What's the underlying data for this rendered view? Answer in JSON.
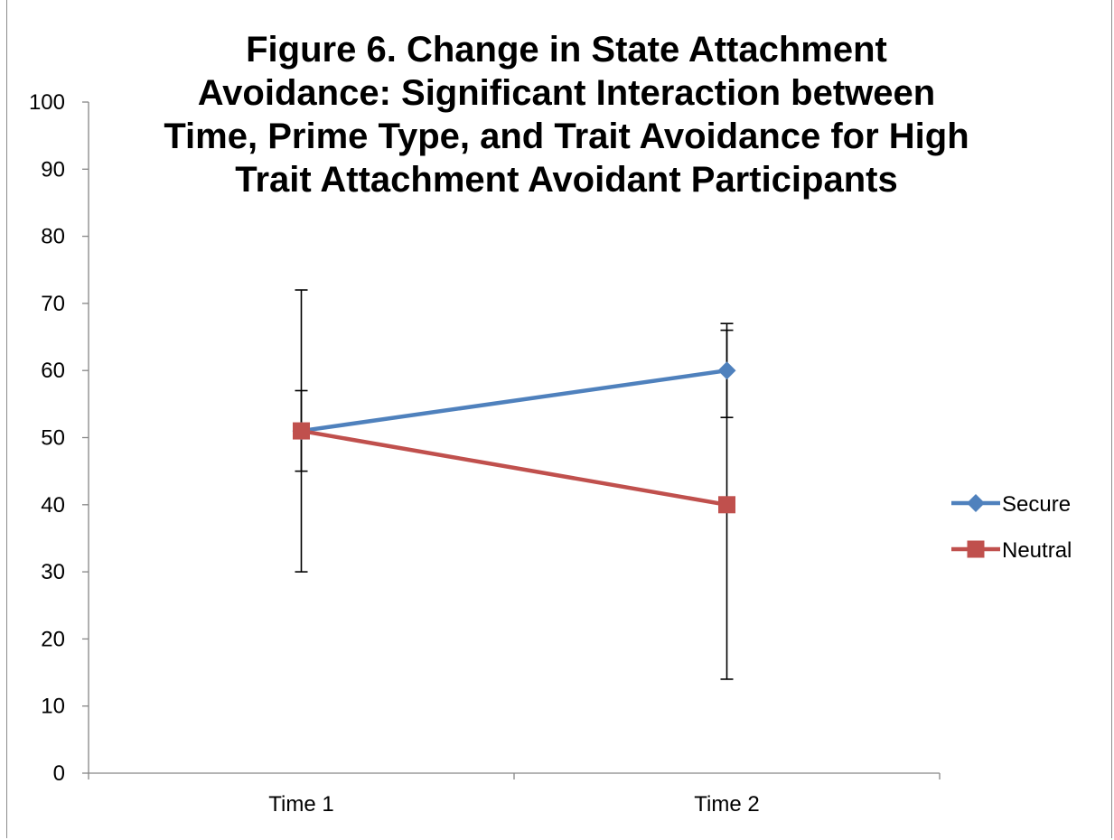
{
  "chart_data": {
    "type": "line",
    "title_lines": [
      "Figure 6. Change in State Attachment",
      "Avoidance: Significant Interaction between",
      "Time, Prime Type, and Trait Avoidance for High",
      "Trait Attachment Avoidant Participants"
    ],
    "categories": [
      "Time 1",
      "Time 2"
    ],
    "ylim": [
      0,
      100
    ],
    "y_ticks": [
      "0",
      "10",
      "20",
      "30",
      "40",
      "50",
      "60",
      "70",
      "80",
      "90",
      "100"
    ],
    "xlabel": "",
    "ylabel": "",
    "grid": false,
    "legend_position": "right",
    "series": [
      {
        "name": "Secure",
        "values": [
          51,
          60
        ],
        "error_low": [
          45,
          53
        ],
        "error_high": [
          57,
          67
        ],
        "color": "#4f81bd",
        "marker": "diamond"
      },
      {
        "name": "Neutral",
        "values": [
          51,
          40
        ],
        "error_low": [
          30,
          14
        ],
        "error_high": [
          72,
          66
        ],
        "color": "#c0504d",
        "marker": "square"
      }
    ]
  }
}
